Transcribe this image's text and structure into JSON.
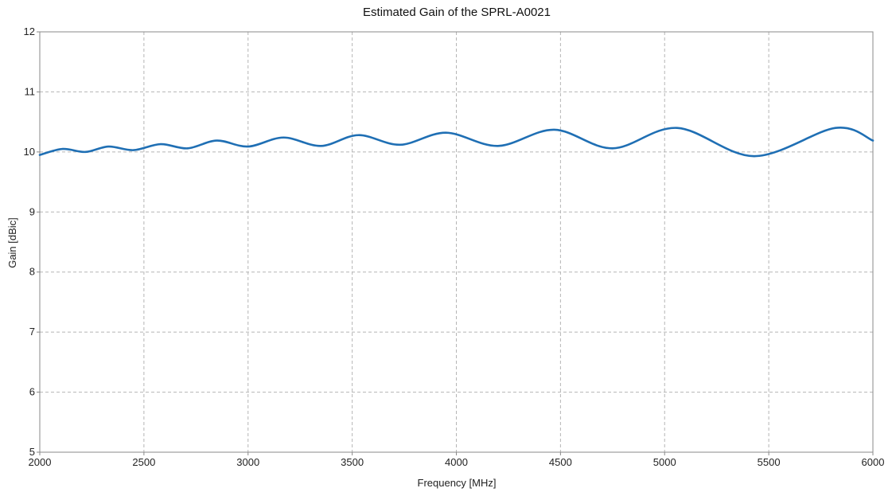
{
  "chart_data": {
    "type": "line",
    "title": "Estimated Gain of the SPRL-A0021",
    "xlabel": "Frequency [MHz]",
    "ylabel": "Gain [dBic]",
    "xlim": [
      2000,
      6000
    ],
    "ylim": [
      5,
      12
    ],
    "x_ticks": [
      "2000",
      "2500",
      "3000",
      "3500",
      "4000",
      "4500",
      "5000",
      "5500",
      "6000"
    ],
    "y_ticks": [
      "5",
      "6",
      "7",
      "8",
      "9",
      "10",
      "11",
      "12"
    ],
    "grid": true,
    "legend": "none",
    "series": [
      {
        "color": "#1f6fb4",
        "x": [
          2000,
          2110,
          2220,
          2330,
          2450,
          2580,
          2710,
          2850,
          3000,
          3170,
          3350,
          3530,
          3730,
          3950,
          4200,
          4470,
          4750,
          5060,
          5430,
          5820,
          6000
        ],
        "y": [
          9.95,
          10.05,
          10.0,
          10.09,
          10.03,
          10.13,
          10.06,
          10.19,
          10.09,
          10.24,
          10.1,
          10.28,
          10.12,
          10.32,
          10.1,
          10.37,
          10.06,
          10.4,
          9.93,
          10.4,
          10.19
        ]
      }
    ]
  }
}
